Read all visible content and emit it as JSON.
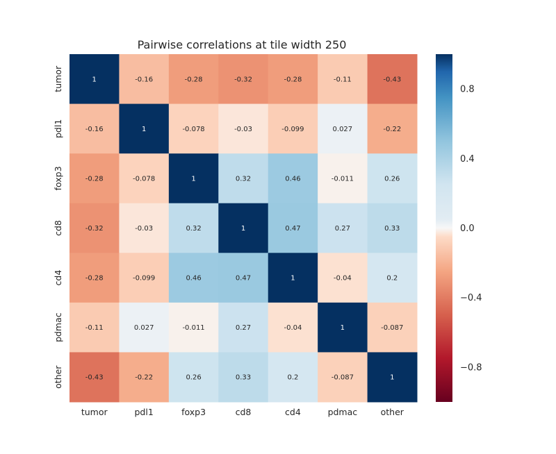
{
  "chart_data": {
    "type": "heatmap",
    "title": "Pairwise correlations at tile width 250",
    "xlabel": "",
    "ylabel": "",
    "x_categories": [
      "tumor",
      "pdl1",
      "foxp3",
      "cd8",
      "cd4",
      "pdmac",
      "other"
    ],
    "y_categories": [
      "tumor",
      "pdl1",
      "foxp3",
      "cd8",
      "cd4",
      "pdmac",
      "other"
    ],
    "values": [
      [
        1,
        -0.16,
        -0.28,
        -0.32,
        -0.28,
        -0.11,
        -0.43
      ],
      [
        -0.16,
        1,
        -0.078,
        -0.03,
        -0.099,
        0.027,
        -0.22
      ],
      [
        -0.28,
        -0.078,
        1,
        0.32,
        0.46,
        -0.011,
        0.26
      ],
      [
        -0.32,
        -0.03,
        0.32,
        1,
        0.47,
        0.27,
        0.33
      ],
      [
        -0.28,
        -0.099,
        0.46,
        0.47,
        1,
        -0.04,
        0.2
      ],
      [
        -0.11,
        0.027,
        -0.011,
        0.27,
        -0.04,
        1,
        -0.087
      ],
      [
        -0.43,
        -0.22,
        0.26,
        0.33,
        0.2,
        -0.087,
        1
      ]
    ],
    "annotations": [
      [
        "1",
        "-0.16",
        "-0.28",
        "-0.32",
        "-0.28",
        "-0.11",
        "-0.43"
      ],
      [
        "-0.16",
        "1",
        "-0.078",
        "-0.03",
        "-0.099",
        "0.027",
        "-0.22"
      ],
      [
        "-0.28",
        "-0.078",
        "1",
        "0.32",
        "0.46",
        "-0.011",
        "0.26"
      ],
      [
        "-0.32",
        "-0.03",
        "0.32",
        "1",
        "0.47",
        "0.27",
        "0.33"
      ],
      [
        "-0.28",
        "-0.099",
        "0.46",
        "0.47",
        "1",
        "-0.04",
        "0.2"
      ],
      [
        "-0.11",
        "0.027",
        "-0.011",
        "0.27",
        "-0.04",
        "1",
        "-0.087"
      ],
      [
        "-0.43",
        "-0.22",
        "0.26",
        "0.33",
        "0.2",
        "-0.087",
        "1"
      ]
    ],
    "colormap": "RdBu",
    "color_range": [
      -1,
      1
    ],
    "colorbar_ticks": [
      0.8,
      0.4,
      0.0,
      -0.4,
      -0.8
    ],
    "colorbar_tick_labels": [
      "0.8",
      "0.4",
      "0.0",
      "−0.4",
      "−0.8"
    ],
    "grid": false,
    "legend": "colorbar-right"
  }
}
